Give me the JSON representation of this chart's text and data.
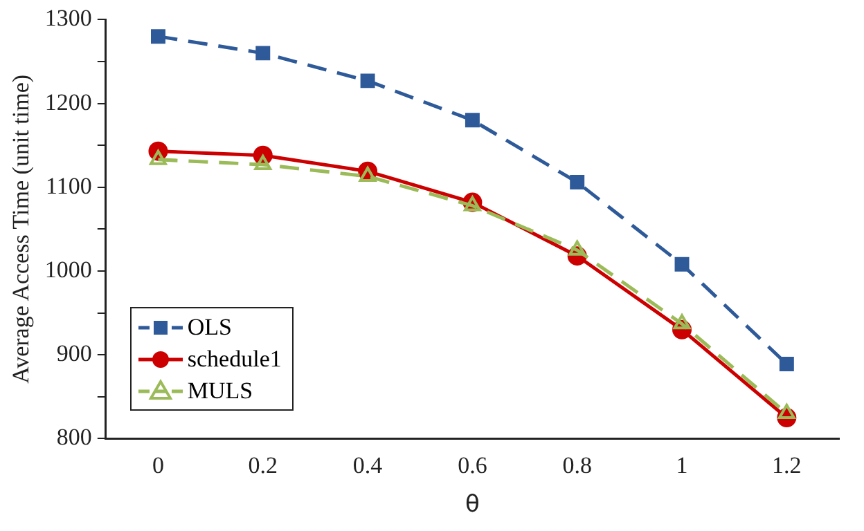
{
  "chart_data": {
    "type": "line",
    "xlabel": "θ",
    "ylabel": "Average Access Time (unit time)",
    "categories": [
      "0",
      "0.2",
      "0.4",
      "0.6",
      "0.8",
      "1",
      "1.2"
    ],
    "ylim": [
      800,
      1300
    ],
    "yticks": [
      800,
      {
        "value": 850,
        "label": null
      },
      900,
      {
        "value": 950,
        "label": null
      },
      1000,
      {
        "value": 1050,
        "label": null
      },
      1100,
      {
        "value": 1150,
        "label": null
      },
      1200,
      {
        "value": 1250,
        "label": null
      },
      1300
    ],
    "grid": false,
    "legend": "bottom left",
    "series": [
      {
        "name": "OLS",
        "color": "#2e5a99",
        "marker": "square",
        "line_style": "dashed",
        "values": [
          1280,
          1260,
          1227,
          1180,
          1106,
          1008,
          889
        ]
      },
      {
        "name": "schedule1",
        "color": "#cc0000",
        "marker": "circle",
        "line_style": "solid",
        "values": [
          1143,
          1138,
          1119,
          1082,
          1018,
          930,
          825
        ]
      },
      {
        "name": "MULS",
        "color": "#9bbb59",
        "marker": "triangle",
        "line_style": "dashed",
        "values": [
          1133,
          1127,
          1113,
          1078,
          1025,
          937,
          830
        ]
      }
    ]
  }
}
